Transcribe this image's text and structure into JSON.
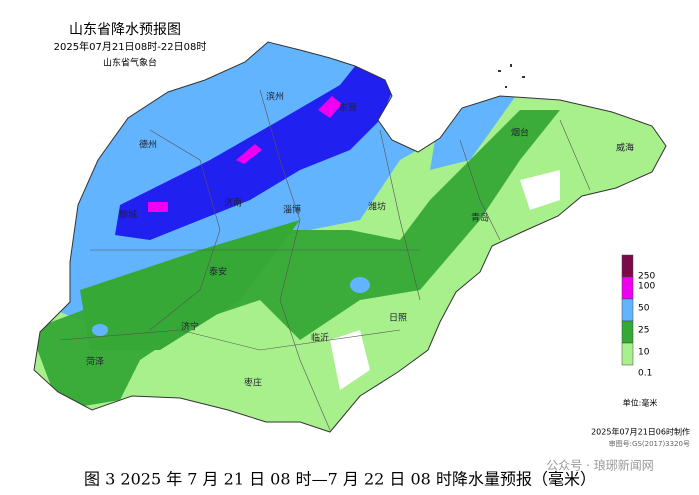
{
  "header": {
    "title": "山东省降水预报图",
    "period": "2025年07月21日08时-22日08时",
    "issuer": "山东省气象台"
  },
  "cities": [
    "滨州",
    "东营",
    "德州",
    "烟台",
    "威海",
    "聊城",
    "济南",
    "淄博",
    "潍坊",
    "青岛",
    "泰安",
    "济宁",
    "菏泽",
    "临沂",
    "日照",
    "枣庄"
  ],
  "legend": {
    "levels": [
      {
        "label": "250",
        "color": "#7a0a4a"
      },
      {
        "label": "100",
        "color": "#f000f0"
      },
      {
        "label": "50",
        "color": "#63b4ff"
      },
      {
        "label": "25",
        "color": "#35a835"
      },
      {
        "label": "10",
        "color": "#a8f08c"
      },
      {
        "label": "0.1",
        "color": "#ffffff"
      }
    ],
    "unit": "单位:毫米"
  },
  "footer": {
    "made": "2025年07月21日06时制作",
    "review": "审图号:GS(2017)3320号"
  },
  "caption": "图 3 2025 年 7 月 21 日 08 时—7 月 22 日 08 时降水量预报（毫米）",
  "watermark": "公众号 · 琅琊新闻网"
}
